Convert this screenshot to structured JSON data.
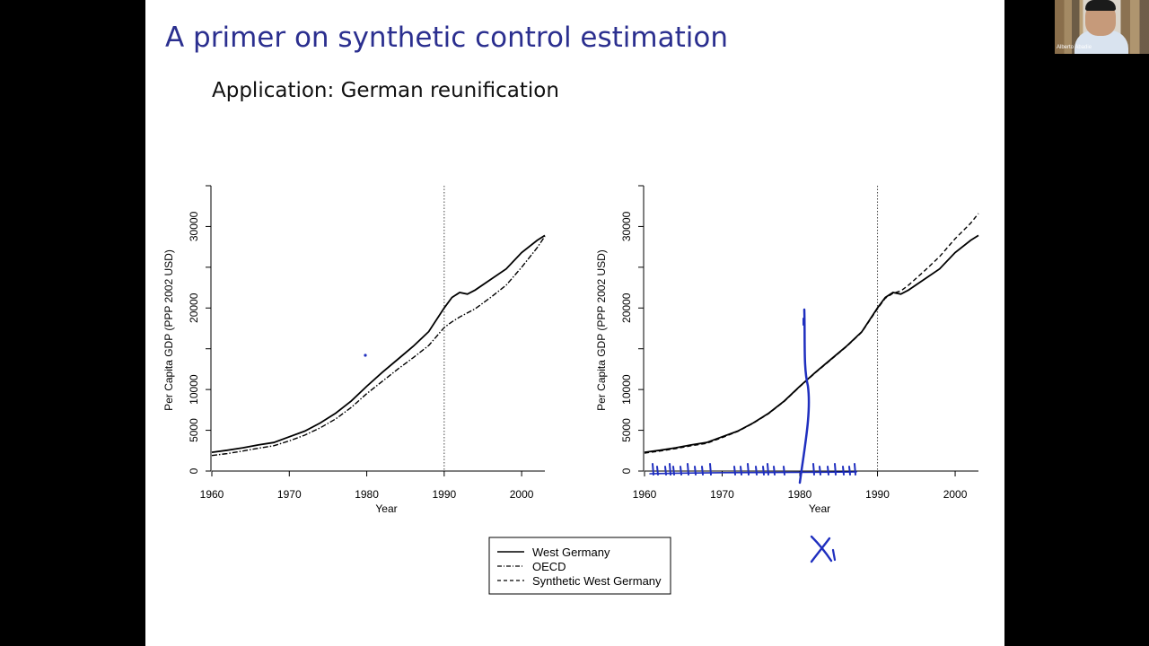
{
  "slide": {
    "title": "A primer on synthetic control estimation",
    "subtitle": "Application: German reunification"
  },
  "legend": {
    "items": [
      {
        "label": "West Germany",
        "style": "solid"
      },
      {
        "label": "OECD",
        "style": "dash-dot"
      },
      {
        "label": "Synthetic West Germany",
        "style": "dashed"
      }
    ]
  },
  "annotation": {
    "handwritten_label": "X₁",
    "color": "#1f2fbf"
  },
  "video": {
    "participant_name": "Alberto Abadie"
  },
  "chart_data": [
    {
      "type": "line",
      "xlabel": "Year",
      "ylabel": "Per Capita GDP (PPP 2002 USD)",
      "xlim": [
        1960,
        2003
      ],
      "ylim": [
        0,
        35000
      ],
      "x_ticks": [
        "1960",
        "1970",
        "1980",
        "1990",
        "2000"
      ],
      "y_ticks": [
        "0",
        "5000",
        "10000",
        "20000",
        "30000"
      ],
      "vline": 1990,
      "x": [
        1960,
        1962,
        1964,
        1966,
        1968,
        1970,
        1972,
        1974,
        1976,
        1978,
        1980,
        1982,
        1984,
        1986,
        1988,
        1990,
        1991,
        1992,
        1993,
        1994,
        1996,
        1998,
        2000,
        2002,
        2003
      ],
      "series": [
        {
          "name": "West Germany",
          "style": "solid",
          "values": [
            2300,
            2550,
            2850,
            3200,
            3500,
            4200,
            4900,
            5900,
            7100,
            8600,
            10400,
            12100,
            13700,
            15300,
            17100,
            20000,
            21300,
            21900,
            21700,
            22200,
            23500,
            24800,
            26800,
            28300,
            28900
          ]
        },
        {
          "name": "OECD",
          "style": "dash-dot",
          "values": [
            1900,
            2150,
            2450,
            2800,
            3100,
            3700,
            4400,
            5300,
            6400,
            7800,
            9500,
            11000,
            12500,
            13900,
            15400,
            17600,
            18300,
            18900,
            19400,
            19900,
            21300,
            22800,
            25000,
            27400,
            28800
          ]
        }
      ]
    },
    {
      "type": "line",
      "xlabel": "Year",
      "ylabel": "Per Capita GDP (PPP 2002 USD)",
      "xlim": [
        1960,
        2003
      ],
      "ylim": [
        0,
        35000
      ],
      "x_ticks": [
        "1960",
        "1970",
        "1980",
        "1990",
        "2000"
      ],
      "y_ticks": [
        "0",
        "5000",
        "10000",
        "20000",
        "30000"
      ],
      "vline": 1990,
      "x": [
        1960,
        1962,
        1964,
        1966,
        1968,
        1970,
        1972,
        1974,
        1976,
        1978,
        1980,
        1982,
        1984,
        1986,
        1988,
        1990,
        1991,
        1992,
        1993,
        1994,
        1996,
        1998,
        2000,
        2002,
        2003
      ],
      "series": [
        {
          "name": "West Germany",
          "style": "solid",
          "values": [
            2300,
            2550,
            2850,
            3200,
            3500,
            4200,
            4900,
            5900,
            7100,
            8600,
            10400,
            12100,
            13700,
            15300,
            17100,
            20000,
            21300,
            21900,
            21700,
            22200,
            23500,
            24800,
            26800,
            28300,
            28900
          ]
        },
        {
          "name": "Synthetic West Germany",
          "style": "dashed",
          "values": [
            2200,
            2450,
            2750,
            3100,
            3400,
            4100,
            4850,
            5850,
            7050,
            8550,
            10350,
            12050,
            13650,
            15250,
            17050,
            19900,
            21200,
            21800,
            22100,
            22800,
            24500,
            26300,
            28500,
            30400,
            31600
          ]
        }
      ]
    }
  ]
}
